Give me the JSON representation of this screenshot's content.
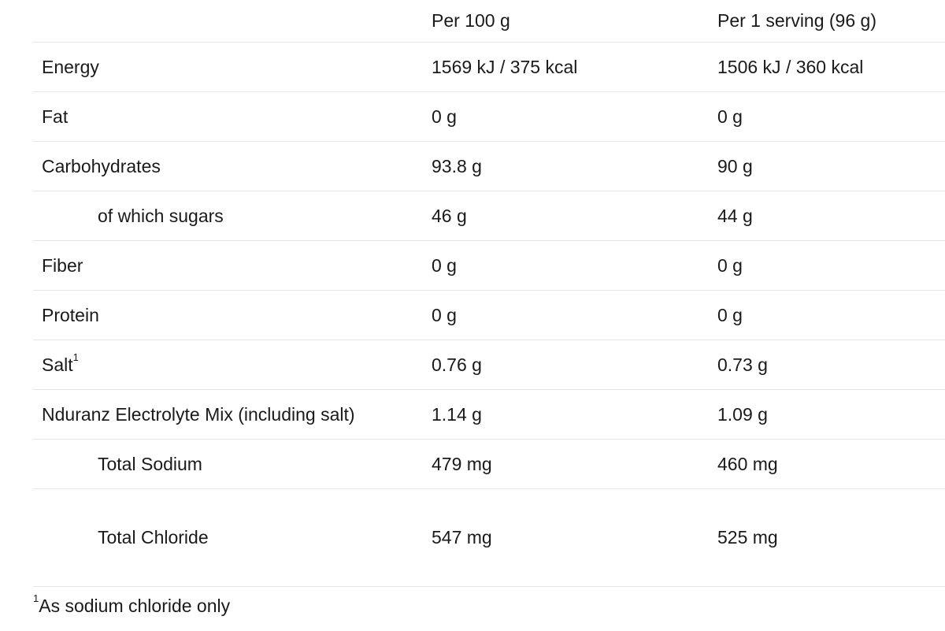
{
  "header": {
    "columns": [
      "Per 100 g",
      "Per 1 serving (96 g)"
    ]
  },
  "table": {
    "rows": [
      {
        "label": "Energy",
        "per_100g": "1569 kJ / 375 kcal",
        "per_serving": "1506 kJ / 360 kcal",
        "indent": false
      },
      {
        "label": "Fat",
        "per_100g": "0 g",
        "per_serving": "0 g",
        "indent": false
      },
      {
        "label": "Carbohydrates",
        "per_100g": "93.8 g",
        "per_serving": "90 g",
        "indent": false
      },
      {
        "label": "of which sugars",
        "per_100g": "46 g",
        "per_serving": "44 g",
        "indent": true
      },
      {
        "label": "Fiber",
        "per_100g": "0 g",
        "per_serving": "0 g",
        "indent": false
      },
      {
        "label": "Protein",
        "per_100g": "0 g",
        "per_serving": "0 g",
        "indent": false
      },
      {
        "label": "Salt",
        "footnote_ref": "1",
        "per_100g": "0.76 g",
        "per_serving": "0.73 g",
        "indent": false
      },
      {
        "label": "Nduranz Electrolyte Mix (including salt)",
        "per_100g": "1.14 g",
        "per_serving": "1.09 g",
        "indent": false
      },
      {
        "label": "Total Sodium",
        "per_100g": "479 mg",
        "per_serving": "460 mg",
        "indent": true
      },
      {
        "label": "Total Chloride",
        "per_100g": "547 mg",
        "per_serving": "525 mg",
        "indent": true
      }
    ]
  },
  "footnote": {
    "marker": "1",
    "text": "As sodium chloride only"
  }
}
